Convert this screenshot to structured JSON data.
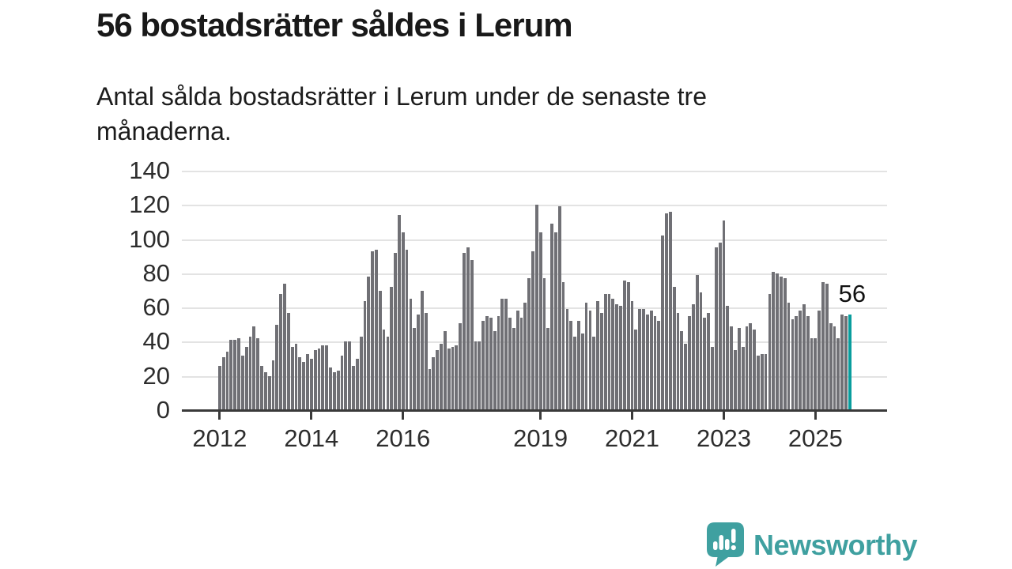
{
  "title": "56 bostadsrätter såldes i Lerum",
  "subtitle_line1": "Antal sålda bostadsrätter i Lerum under de senaste tre",
  "subtitle_line2": "månaderna.",
  "annotation": {
    "label": "56"
  },
  "logo": {
    "name": "Newsworthy"
  },
  "colors": {
    "bar": "#707075",
    "highlight": "#099d9d",
    "gridline": "#e3e3e3",
    "axis": "#3a3a3a",
    "text": "#1c1c1c",
    "logo_teal": "#3fa0a0"
  },
  "chart_data": {
    "type": "bar",
    "title": "56 bostadsrätter såldes i Lerum",
    "xlabel": "",
    "ylabel": "",
    "ylim": [
      0,
      140
    ],
    "grid": true,
    "x_start": "2012-01",
    "x_end": "2025-10",
    "y_ticks": [
      0,
      20,
      40,
      60,
      80,
      100,
      120,
      140
    ],
    "x_ticks": [
      {
        "label": "2012",
        "month": 0
      },
      {
        "label": "2014",
        "month": 24
      },
      {
        "label": "2016",
        "month": 48
      },
      {
        "label": "2019",
        "month": 84
      },
      {
        "label": "2021",
        "month": 108
      },
      {
        "label": "2023",
        "month": 132
      },
      {
        "label": "2025",
        "month": 156
      }
    ],
    "values": [
      26,
      31,
      34,
      41,
      41,
      42,
      32,
      37,
      43,
      49,
      42,
      26,
      22,
      20,
      29,
      50,
      68,
      74,
      57,
      37,
      39,
      31,
      28,
      33,
      30,
      35,
      36,
      38,
      38,
      25,
      22,
      23,
      32,
      40,
      40,
      26,
      30,
      43,
      64,
      78,
      93,
      94,
      70,
      47,
      43,
      72,
      92,
      114,
      104,
      94,
      65,
      48,
      56,
      70,
      57,
      24,
      31,
      35,
      39,
      46,
      36,
      37,
      38,
      51,
      92,
      95,
      88,
      40,
      40,
      52,
      55,
      54,
      46,
      55,
      65,
      65,
      54,
      48,
      58,
      54,
      63,
      77,
      93,
      120,
      104,
      77,
      48,
      109,
      104,
      119,
      75,
      59,
      52,
      43,
      52,
      45,
      63,
      58,
      43,
      64,
      57,
      68,
      68,
      65,
      62,
      61,
      76,
      75,
      64,
      47,
      59,
      59,
      56,
      58,
      55,
      52,
      102,
      115,
      116,
      72,
      57,
      46,
      39,
      55,
      62,
      79,
      69,
      54,
      57,
      37,
      95,
      98,
      111,
      61,
      49,
      35,
      48,
      37,
      49,
      51,
      47,
      32,
      33,
      33,
      68,
      81,
      80,
      78,
      77,
      63,
      53,
      55,
      58,
      62,
      55,
      42,
      42,
      58,
      75,
      74,
      51,
      49,
      42,
      56,
      55,
      56
    ],
    "highlight_last_bar": true,
    "highlight_value": 56
  }
}
